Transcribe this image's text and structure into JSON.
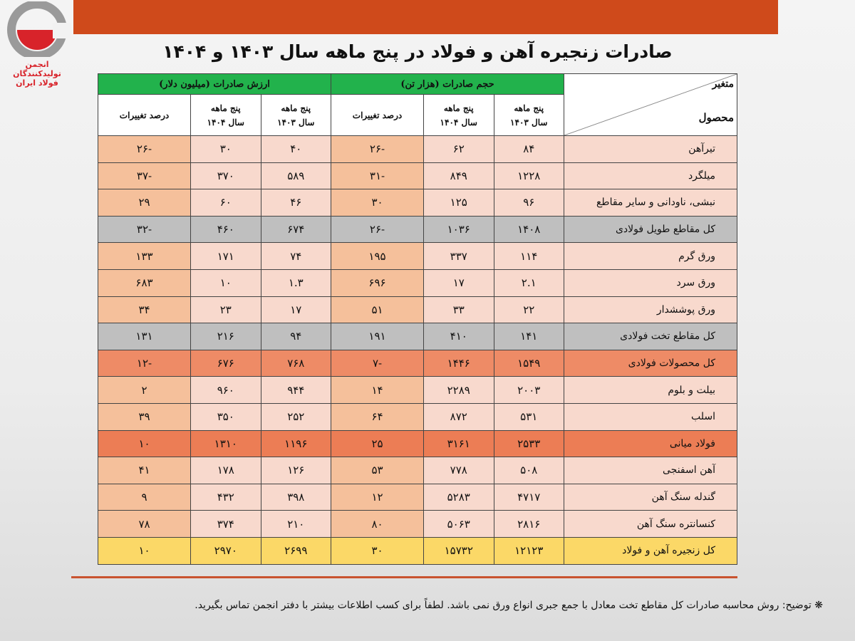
{
  "logo": {
    "line1": "انجمن تولیدکنندگان",
    "line2": "فولاد ایران"
  },
  "title": "صادرات زنجیره آهن و فولاد در پنج ماهه سال ۱۴۰۳ و ۱۴۰۴",
  "header": {
    "variable": "متغیر",
    "product": "محصول",
    "volume_group": "حجم صادرات (هزار تن)",
    "value_group": "ارزش صادرات (میلیون دلار)",
    "period_label": "پنج ماهه",
    "year_1403": "سال ۱۴۰۳",
    "year_1404": "سال ۱۴۰۴",
    "change": "درصد تغییرات"
  },
  "colors": {
    "topbar": "#cf4a1b",
    "group_header": "#22b24c",
    "row": "#f8d9cd",
    "pct": "#f5c09b",
    "subtotal": "#bfbfbf",
    "total": "#ee8b66",
    "highlight": "#ec7d55",
    "grand_total": "#fbd867"
  },
  "rows": [
    {
      "type": "n",
      "product": "تیرآهن",
      "v1403": "۸۴",
      "v1404": "۶۲",
      "vpct": "-۲۶",
      "d1403": "۴۰",
      "d1404": "۳۰",
      "dpct": "-۲۶"
    },
    {
      "type": "n",
      "product": "میلگرد",
      "v1403": "۱۲۲۸",
      "v1404": "۸۴۹",
      "vpct": "-۳۱",
      "d1403": "۵۸۹",
      "d1404": "۳۷۰",
      "dpct": "-۳۷"
    },
    {
      "type": "n",
      "product": "نبشی، ناودانی و سایر مقاطع",
      "v1403": "۹۶",
      "v1404": "۱۲۵",
      "vpct": "۳۰",
      "d1403": "۴۶",
      "d1404": "۶۰",
      "dpct": "۲۹"
    },
    {
      "type": "gy",
      "product": "کل مقاطع طویل فولادی",
      "v1403": "۱۴۰۸",
      "v1404": "۱۰۳۶",
      "vpct": "-۲۶",
      "d1403": "۶۷۴",
      "d1404": "۴۶۰",
      "dpct": "-۳۲"
    },
    {
      "type": "n",
      "product": "ورق گرم",
      "v1403": "۱۱۴",
      "v1404": "۳۳۷",
      "vpct": "۱۹۵",
      "d1403": "۷۴",
      "d1404": "۱۷۱",
      "dpct": "۱۳۳"
    },
    {
      "type": "n",
      "product": "ورق سرد",
      "v1403": "۲.۱",
      "v1404": "۱۷",
      "vpct": "۶۹۶",
      "d1403": "۱.۳",
      "d1404": "۱۰",
      "dpct": "۶۸۳"
    },
    {
      "type": "n",
      "product": "ورق پوششدار",
      "v1403": "۲۲",
      "v1404": "۳۳",
      "vpct": "۵۱",
      "d1403": "۱۷",
      "d1404": "۲۳",
      "dpct": "۳۴"
    },
    {
      "type": "gy",
      "product": "کل مقاطع تخت فولادی",
      "v1403": "۱۴۱",
      "v1404": "۴۱۰",
      "vpct": "۱۹۱",
      "d1403": "۹۴",
      "d1404": "۲۱۶",
      "dpct": "۱۳۱"
    },
    {
      "type": "o",
      "product": "کل محصولات فولادی",
      "v1403": "۱۵۴۹",
      "v1404": "۱۴۴۶",
      "vpct": "-۷",
      "d1403": "۷۶۸",
      "d1404": "۶۷۶",
      "dpct": "-۱۲"
    },
    {
      "type": "n",
      "product": "بیلت و بلوم",
      "v1403": "۲۰۰۳",
      "v1404": "۲۲۸۹",
      "vpct": "۱۴",
      "d1403": "۹۴۴",
      "d1404": "۹۶۰",
      "dpct": "۲"
    },
    {
      "type": "n",
      "product": "اسلب",
      "v1403": "۵۳۱",
      "v1404": "۸۷۲",
      "vpct": "۶۴",
      "d1403": "۲۵۲",
      "d1404": "۳۵۰",
      "dpct": "۳۹"
    },
    {
      "type": "o2",
      "product": "فولاد میانی",
      "v1403": "۲۵۳۳",
      "v1404": "۳۱۶۱",
      "vpct": "۲۵",
      "d1403": "۱۱۹۶",
      "d1404": "۱۳۱۰",
      "dpct": "۱۰"
    },
    {
      "type": "n",
      "product": "آهن اسفنجی",
      "v1403": "۵۰۸",
      "v1404": "۷۷۸",
      "vpct": "۵۳",
      "d1403": "۱۲۶",
      "d1404": "۱۷۸",
      "dpct": "۴۱"
    },
    {
      "type": "n",
      "product": "گندله سنگ آهن",
      "v1403": "۴۷۱۷",
      "v1404": "۵۲۸۳",
      "vpct": "۱۲",
      "d1403": "۳۹۸",
      "d1404": "۴۳۲",
      "dpct": "۹"
    },
    {
      "type": "n",
      "product": "کنسانتره سنگ آهن",
      "v1403": "۲۸۱۶",
      "v1404": "۵۰۶۳",
      "vpct": "۸۰",
      "d1403": "۲۱۰",
      "d1404": "۳۷۴",
      "dpct": "۷۸"
    },
    {
      "type": "y",
      "product": "کل زنجیره آهن و فولاد",
      "v1403": "۱۲۱۲۳",
      "v1404": "۱۵۷۳۲",
      "vpct": "۳۰",
      "d1403": "۲۶۹۹",
      "d1404": "۲۹۷۰",
      "dpct": "۱۰"
    }
  ],
  "note": "❋ توضیح: روش محاسبه صادرات کل مقاطع تخت معادل با جمع جبری انواع ورق نمی باشد. لطفاً برای کسب اطلاعات بیشتر با دفتر انجمن تماس بگیرید."
}
